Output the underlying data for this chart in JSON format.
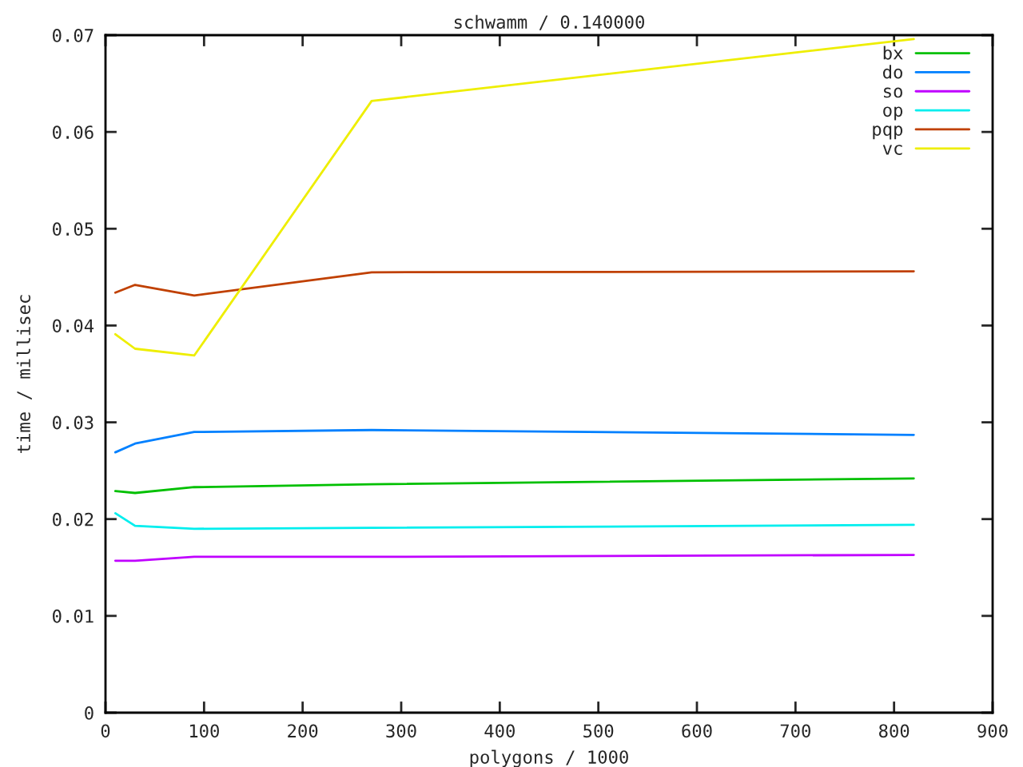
{
  "chart_data": {
    "type": "line",
    "title": "schwamm / 0.140000",
    "xlabel": "polygons / 1000",
    "ylabel": "time / millisec",
    "xlim": [
      0,
      900
    ],
    "xticks": [
      0,
      100,
      200,
      300,
      400,
      500,
      600,
      700,
      800,
      900
    ],
    "ylim": [
      0,
      0.07
    ],
    "yticks": [
      0,
      0.01,
      0.02,
      0.03,
      0.04,
      0.05,
      0.06,
      0.07
    ],
    "grid": false,
    "legend": "top right",
    "line_style": "solid",
    "x": [
      10,
      30,
      90,
      270,
      820
    ],
    "series": [
      {
        "name": "bx",
        "color": "#00c000",
        "values": [
          0.0229,
          0.0227,
          0.0233,
          0.0236,
          0.0242
        ]
      },
      {
        "name": "do",
        "color": "#0080ff",
        "values": [
          0.0269,
          0.0278,
          0.029,
          0.0292,
          0.0287
        ]
      },
      {
        "name": "so",
        "color": "#c000ff",
        "values": [
          0.0157,
          0.0157,
          0.0161,
          0.0161,
          0.0163
        ]
      },
      {
        "name": "op",
        "color": "#00eeee",
        "values": [
          0.0206,
          0.0193,
          0.019,
          0.0191,
          0.0194
        ]
      },
      {
        "name": "pqp",
        "color": "#c04000",
        "values": [
          0.0434,
          0.0442,
          0.0431,
          0.0455,
          0.0456
        ]
      },
      {
        "name": "vc",
        "color": "#eeee00",
        "values": [
          0.0391,
          0.0376,
          0.0369,
          0.0632,
          0.0696
        ]
      }
    ]
  }
}
